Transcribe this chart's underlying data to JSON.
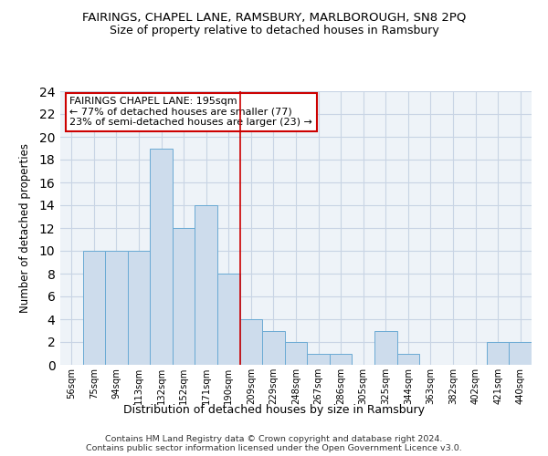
{
  "title": "FAIRINGS, CHAPEL LANE, RAMSBURY, MARLBOROUGH, SN8 2PQ",
  "subtitle": "Size of property relative to detached houses in Ramsbury",
  "xlabel": "Distribution of detached houses by size in Ramsbury",
  "ylabel": "Number of detached properties",
  "categories": [
    "56sqm",
    "75sqm",
    "94sqm",
    "113sqm",
    "132sqm",
    "152sqm",
    "171sqm",
    "190sqm",
    "209sqm",
    "229sqm",
    "248sqm",
    "267sqm",
    "286sqm",
    "305sqm",
    "325sqm",
    "344sqm",
    "363sqm",
    "382sqm",
    "402sqm",
    "421sqm",
    "440sqm"
  ],
  "values": [
    0,
    10,
    10,
    10,
    19,
    12,
    14,
    8,
    4,
    3,
    2,
    1,
    1,
    0,
    3,
    1,
    0,
    0,
    0,
    2,
    2
  ],
  "bar_color": "#cddcec",
  "bar_edge_color": "#6aaad4",
  "vline_index": 7.5,
  "vline_color": "#cc0000",
  "annotation_text": "FAIRINGS CHAPEL LANE: 195sqm\n← 77% of detached houses are smaller (77)\n23% of semi-detached houses are larger (23) →",
  "annotation_box_facecolor": "#ffffff",
  "annotation_box_edgecolor": "#cc0000",
  "ylim": [
    0,
    24
  ],
  "yticks": [
    0,
    2,
    4,
    6,
    8,
    10,
    12,
    14,
    16,
    18,
    20,
    22,
    24
  ],
  "grid_color": "#c8d4e4",
  "background_color": "#ffffff",
  "plot_bg_color": "#eef3f8",
  "footer_line1": "Contains HM Land Registry data © Crown copyright and database right 2024.",
  "footer_line2": "Contains public sector information licensed under the Open Government Licence v3.0."
}
